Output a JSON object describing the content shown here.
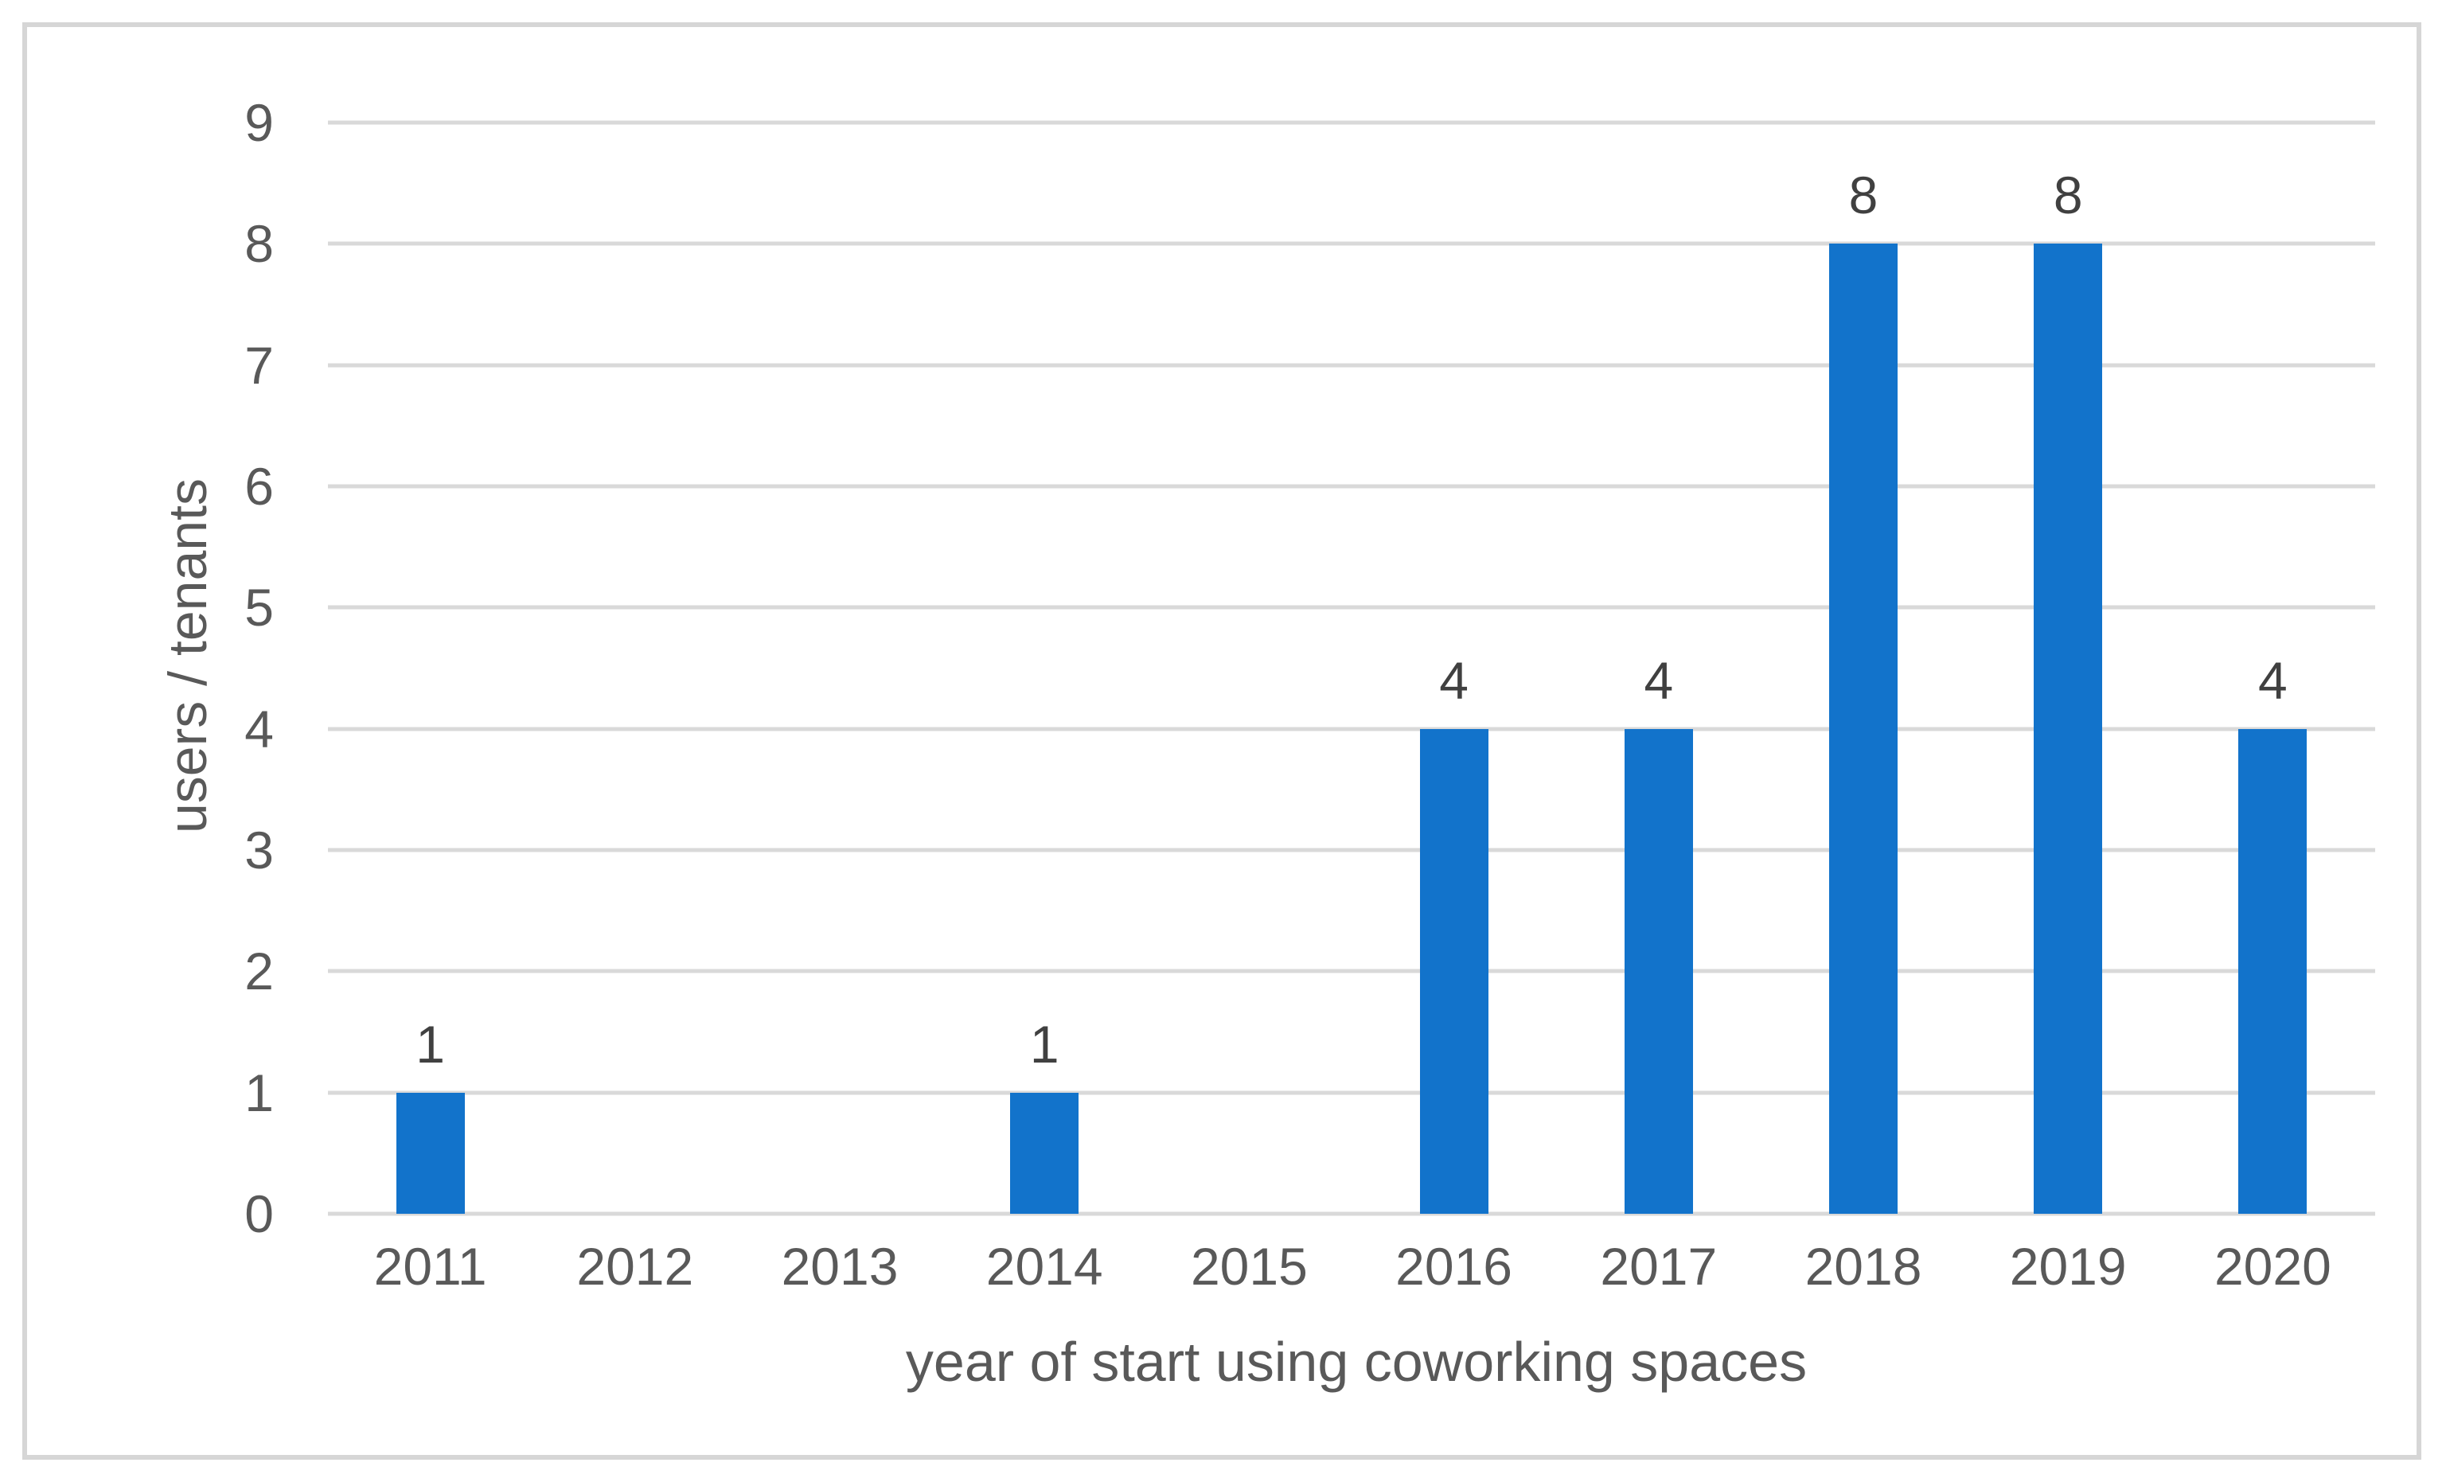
{
  "chart_data": {
    "type": "bar",
    "title": "",
    "categories": [
      "2011",
      "2012",
      "2013",
      "2014",
      "2015",
      "2016",
      "2017",
      "2018",
      "2019",
      "2020"
    ],
    "values": [
      1,
      0,
      0,
      1,
      0,
      4,
      4,
      8,
      8,
      4
    ],
    "data_labels": [
      "1",
      "",
      "",
      "1",
      "",
      "4",
      "4",
      "8",
      "8",
      "4"
    ],
    "xlabel": "year of start using coworking spaces",
    "ylabel": "users / tenants",
    "ylim": [
      0,
      9
    ],
    "yticks": [
      0,
      1,
      2,
      3,
      4,
      5,
      6,
      7,
      8,
      9
    ],
    "grid": "horizontal-gridlines-on",
    "legend": "none",
    "colors": {
      "bar": "#1273CB",
      "gridline": "#D9D9D9",
      "frame_border": "#D6D6D6",
      "tick_label": "#595959",
      "axis_title": "#595959",
      "data_label": "#404040",
      "background": "#FFFFFF"
    }
  }
}
